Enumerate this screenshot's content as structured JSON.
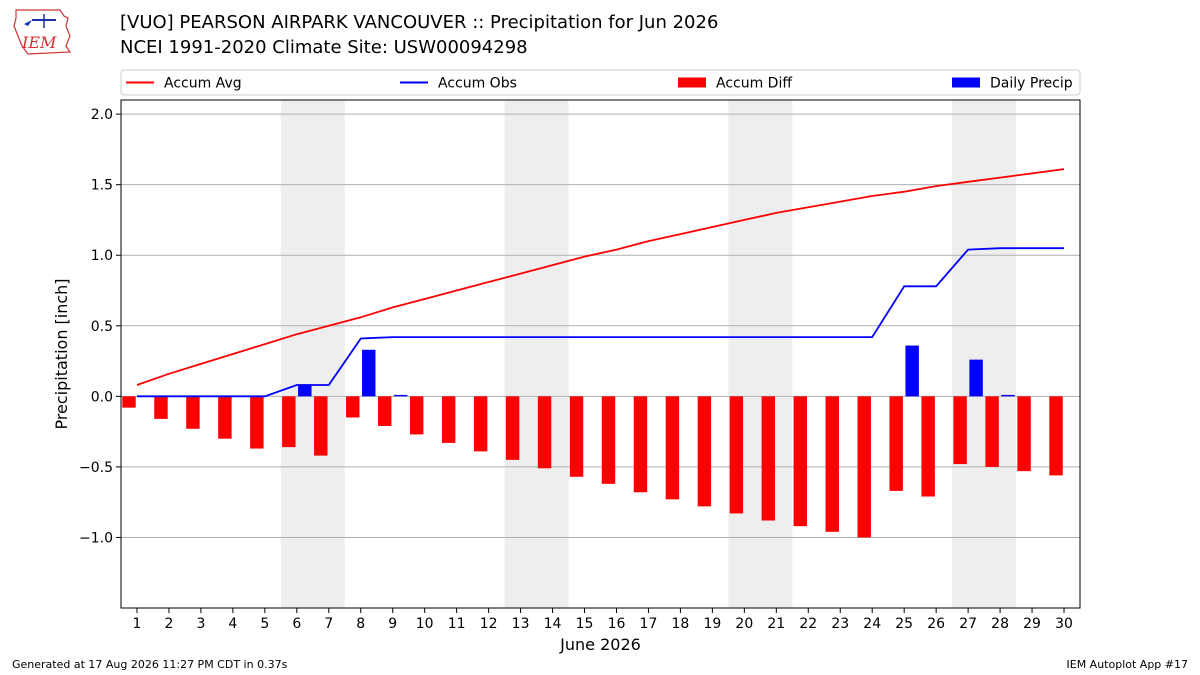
{
  "header": {
    "title_line1": "[VUO] PEARSON AIRPARK  VANCOUVER :: Precipitation for Jun 2026",
    "title_line2": "NCEI 1991-2020 Climate Site: USW00094298",
    "logo_text": "IEM"
  },
  "footer": {
    "generated": "Generated at 17 Aug 2026 11:27 PM CDT in 0.37s",
    "app": "IEM Autoplot App #17"
  },
  "chart_data": {
    "type": "bar",
    "xlabel": "June 2026",
    "ylabel": "Precipitation [inch]",
    "ylim": [
      -1.5,
      2.1
    ],
    "xlim": [
      0.5,
      30.5
    ],
    "yticks": [
      -1.0,
      -0.5,
      0.0,
      0.5,
      1.0,
      1.5,
      2.0
    ],
    "ytick_labels": [
      "−1.0",
      "−0.5",
      "0.0",
      "0.5",
      "1.0",
      "1.5",
      "2.0"
    ],
    "x": [
      1,
      2,
      3,
      4,
      5,
      6,
      7,
      8,
      9,
      10,
      11,
      12,
      13,
      14,
      15,
      16,
      17,
      18,
      19,
      20,
      21,
      22,
      23,
      24,
      25,
      26,
      27,
      28,
      29,
      30
    ],
    "grid": "horizontal",
    "legend_position": "top",
    "weekend_bands": [
      [
        6,
        7
      ],
      [
        13,
        14
      ],
      [
        20,
        21
      ],
      [
        27,
        28
      ]
    ],
    "colors": {
      "avg": "#ff0000",
      "obs": "#0000ff",
      "diff": "#ff0000",
      "daily": "#0000ff",
      "band": "#eeeeee",
      "grid": "#b0b0b0"
    },
    "series": [
      {
        "name": "Accum Avg",
        "kind": "line",
        "values": [
          0.08,
          0.16,
          0.23,
          0.3,
          0.37,
          0.44,
          0.5,
          0.56,
          0.63,
          0.69,
          0.75,
          0.81,
          0.87,
          0.93,
          0.99,
          1.04,
          1.1,
          1.15,
          1.2,
          1.25,
          1.3,
          1.34,
          1.38,
          1.42,
          1.45,
          1.49,
          1.52,
          1.55,
          1.58,
          1.61
        ]
      },
      {
        "name": "Accum Obs",
        "kind": "line",
        "values": [
          0.0,
          0.0,
          0.0,
          0.0,
          0.0,
          0.08,
          0.08,
          0.41,
          0.42,
          0.42,
          0.42,
          0.42,
          0.42,
          0.42,
          0.42,
          0.42,
          0.42,
          0.42,
          0.42,
          0.42,
          0.42,
          0.42,
          0.42,
          0.42,
          0.78,
          0.78,
          1.04,
          1.05,
          1.05,
          1.05
        ]
      },
      {
        "name": "Accum Diff",
        "kind": "bar",
        "offset": -0.25,
        "values": [
          -0.08,
          -0.16,
          -0.23,
          -0.3,
          -0.37,
          -0.36,
          -0.42,
          -0.15,
          -0.21,
          -0.27,
          -0.33,
          -0.39,
          -0.45,
          -0.51,
          -0.57,
          -0.62,
          -0.68,
          -0.73,
          -0.78,
          -0.83,
          -0.88,
          -0.92,
          -0.96,
          -1.0,
          -0.67,
          -0.71,
          -0.48,
          -0.5,
          -0.53,
          -0.56
        ]
      },
      {
        "name": "Daily Precip",
        "kind": "bar",
        "offset": 0.25,
        "values": [
          0,
          0,
          0,
          0,
          0,
          0.08,
          0,
          0.33,
          0.01,
          0,
          0,
          0,
          0,
          0,
          0,
          0,
          0,
          0,
          0,
          0,
          0,
          0,
          0,
          0,
          0.36,
          0,
          0.26,
          0.01,
          0,
          0
        ]
      }
    ]
  }
}
